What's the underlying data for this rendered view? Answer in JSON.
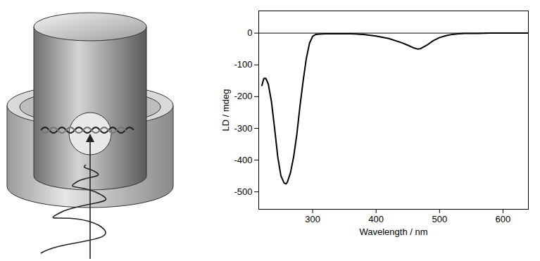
{
  "chart_data": {
    "type": "line",
    "x_label": "Wavelength / nm",
    "y_label": "LD / mdeg",
    "x": [
      220,
      223,
      226,
      230,
      235,
      240,
      245,
      250,
      255,
      258,
      260,
      265,
      270,
      275,
      280,
      285,
      290,
      295,
      300,
      305,
      310,
      320,
      340,
      360,
      380,
      400,
      420,
      440,
      450,
      460,
      465,
      470,
      480,
      490,
      500,
      510,
      520,
      530,
      540,
      560,
      580,
      600,
      620,
      640
    ],
    "values": [
      -165,
      -143,
      -142,
      -160,
      -215,
      -300,
      -390,
      -450,
      -472,
      -475,
      -470,
      -440,
      -390,
      -320,
      -230,
      -150,
      -80,
      -32,
      -10,
      -4,
      -3,
      -2,
      -2,
      -2,
      -4,
      -9,
      -17,
      -30,
      -38,
      -47,
      -50,
      -49,
      -38,
      -24,
      -14,
      -8,
      -4,
      -2,
      -1,
      -1,
      0,
      0,
      0,
      0
    ],
    "color": "#000000",
    "xlim": [
      215,
      640
    ],
    "ylim": [
      -555,
      70
    ],
    "xticks": [
      300,
      400,
      500,
      600
    ],
    "yticks": [
      0,
      -100,
      -200,
      -300,
      -400,
      -500
    ],
    "hlines": [
      0
    ],
    "grid": false
  }
}
